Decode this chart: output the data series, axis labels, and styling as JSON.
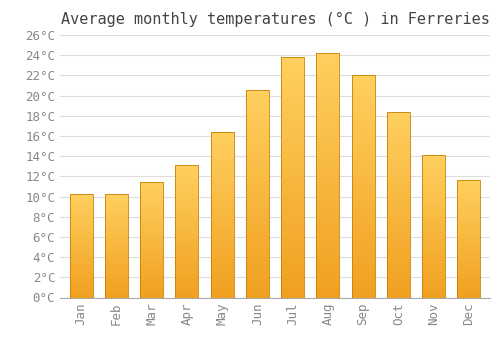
{
  "title": "Average monthly temperatures (°C ) in Ferreries",
  "months": [
    "Jan",
    "Feb",
    "Mar",
    "Apr",
    "May",
    "Jun",
    "Jul",
    "Aug",
    "Sep",
    "Oct",
    "Nov",
    "Dec"
  ],
  "temperatures": [
    10.3,
    10.3,
    11.4,
    13.1,
    16.4,
    20.6,
    23.8,
    24.2,
    22.0,
    18.4,
    14.1,
    11.6
  ],
  "bar_color_top": "#FFD060",
  "bar_color_bottom": "#F0A020",
  "bar_edge_color": "#C88000",
  "ylim": [
    0,
    26
  ],
  "ytick_step": 2,
  "background_color": "#FFFFFF",
  "grid_color": "#DDDDDD",
  "title_fontsize": 11,
  "tick_fontsize": 9,
  "tick_color": "#888888",
  "font_family": "monospace"
}
